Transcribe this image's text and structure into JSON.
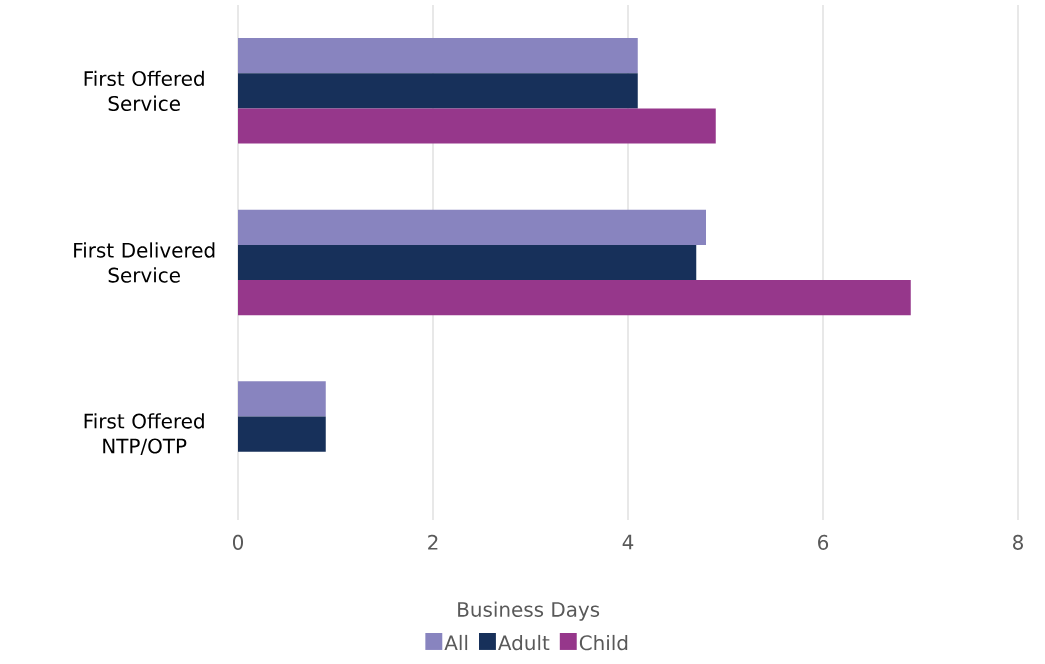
{
  "chart_data": {
    "type": "bar",
    "orientation": "horizontal",
    "xlabel": "Business Days",
    "categories": [
      "First Offered Service",
      "First Delivered Service",
      "First Offered NTP/OTP"
    ],
    "series": [
      {
        "name": "All",
        "color": "#8884bf",
        "values": [
          4.1,
          4.8,
          0.9
        ]
      },
      {
        "name": "Adult",
        "color": "#17305a",
        "values": [
          4.1,
          4.7,
          0.9
        ]
      },
      {
        "name": "Child",
        "color": "#96378b",
        "values": [
          4.9,
          6.9,
          null
        ]
      }
    ],
    "xlim": [
      0,
      8
    ],
    "xticks": [
      0,
      2,
      4,
      6,
      8
    ],
    "grid": "x",
    "legend": "bottom"
  }
}
